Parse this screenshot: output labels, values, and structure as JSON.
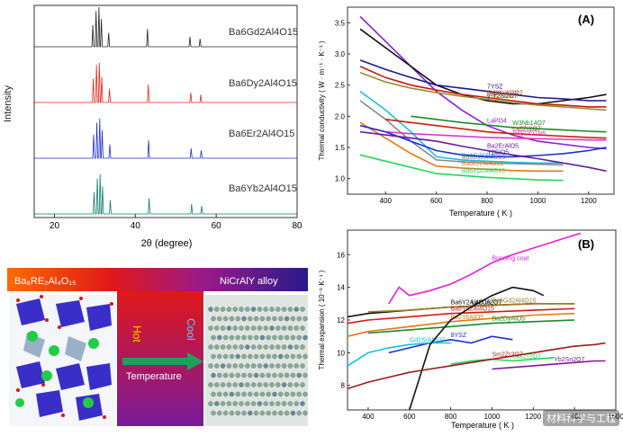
{
  "chart_data": [
    {
      "type": "line",
      "xlabel": "2θ (degree)",
      "ylabel": "Intensity",
      "xlim": [
        15,
        80
      ],
      "x_ticks": [
        "20",
        "40",
        "60",
        "80"
      ],
      "series": [
        {
          "name": "Ba6Gd2Al4O15",
          "color": "#222222",
          "peaks": [
            [
              29.5,
              0.55
            ],
            [
              30.3,
              0.9
            ],
            [
              31.0,
              1.0
            ],
            [
              31.6,
              0.7
            ],
            [
              33.4,
              0.35
            ],
            [
              43.0,
              0.45
            ],
            [
              53.5,
              0.25
            ],
            [
              56.0,
              0.2
            ]
          ]
        },
        {
          "name": "Ba6Dy2Al4O15",
          "color": "#e0281a",
          "peaks": [
            [
              29.6,
              0.6
            ],
            [
              30.4,
              0.95
            ],
            [
              31.1,
              1.0
            ],
            [
              31.7,
              0.65
            ],
            [
              33.6,
              0.35
            ],
            [
              43.2,
              0.45
            ],
            [
              53.7,
              0.25
            ],
            [
              56.2,
              0.2
            ]
          ]
        },
        {
          "name": "Ba6Er2Al4O15",
          "color": "#1f2ed0",
          "peaks": [
            [
              29.7,
              0.6
            ],
            [
              30.5,
              0.9
            ],
            [
              31.2,
              1.0
            ],
            [
              31.8,
              0.7
            ],
            [
              33.7,
              0.35
            ],
            [
              43.3,
              0.45
            ],
            [
              53.8,
              0.25
            ],
            [
              56.3,
              0.2
            ]
          ]
        },
        {
          "name": "Ba6Yb2Al4O15",
          "color": "#0e7c6b",
          "peaks": [
            [
              29.8,
              0.55
            ],
            [
              30.6,
              0.9
            ],
            [
              31.3,
              1.0
            ],
            [
              31.9,
              0.7
            ],
            [
              33.8,
              0.35
            ],
            [
              43.4,
              0.4
            ],
            [
              53.9,
              0.25
            ],
            [
              56.4,
              0.2
            ]
          ]
        }
      ]
    },
    {
      "type": "line",
      "panel_label": "(A)",
      "xlabel": "Temperature ( K )",
      "ylabel": "Thermal conductivity ( W · m⁻¹ · K⁻¹ )",
      "xlim": [
        250,
        1300
      ],
      "ylim": [
        0.75,
        3.75
      ],
      "x_ticks": [
        "400",
        "600",
        "800",
        "1000",
        "1200"
      ],
      "y_ticks": [
        "1.0",
        "1.5",
        "2.0",
        "2.5",
        "3.0",
        "3.5"
      ],
      "series": [
        {
          "name": "LaPO4",
          "color": "#8b1fd6",
          "x": [
            300,
            400,
            500,
            600,
            700,
            800,
            900,
            1000,
            1100,
            1200,
            1270
          ],
          "y": [
            3.6,
            3.2,
            2.8,
            2.4,
            2.1,
            1.85,
            1.7,
            1.6,
            1.55,
            1.5,
            1.48
          ]
        },
        {
          "name": "γ-Y2Si2O7",
          "color": "#111111",
          "x": [
            300,
            400,
            500,
            600,
            700,
            800,
            900,
            1000,
            1100,
            1200,
            1270
          ],
          "y": [
            3.4,
            3.1,
            2.8,
            2.5,
            2.35,
            2.25,
            2.2,
            2.2,
            2.25,
            2.3,
            2.35
          ]
        },
        {
          "name": "7YSZ",
          "color": "#1a1a8c",
          "x": [
            300,
            400,
            500,
            600,
            700,
            800,
            900,
            1000,
            1100,
            1200,
            1270
          ],
          "y": [
            2.9,
            2.75,
            2.62,
            2.5,
            2.45,
            2.4,
            2.35,
            2.3,
            2.28,
            2.25,
            2.25
          ]
        },
        {
          "name": "Gd2SrAl2O7",
          "color": "#c0181a",
          "x": [
            300,
            400,
            500,
            600,
            700,
            800,
            900,
            1000,
            1100,
            1200,
            1270
          ],
          "y": [
            2.8,
            2.62,
            2.5,
            2.42,
            2.35,
            2.3,
            2.25,
            2.2,
            2.18,
            2.15,
            2.15
          ]
        },
        {
          "name": "Yb2Sn2O7",
          "color": "#9c8a2a",
          "x": [
            300,
            400,
            500,
            600,
            700,
            800,
            900,
            1000,
            1100,
            1200,
            1270
          ],
          "y": [
            2.7,
            2.55,
            2.45,
            2.38,
            2.32,
            2.27,
            2.22,
            2.18,
            2.15,
            2.12,
            2.1
          ]
        },
        {
          "name": "Ba6Gd2Al4O15",
          "color": "#18c0d8",
          "x": [
            300,
            400,
            500,
            600,
            700,
            800,
            900,
            1000,
            1100
          ],
          "y": [
            2.4,
            2.1,
            1.75,
            1.35,
            1.3,
            1.28,
            1.26,
            1.25,
            1.25
          ]
        },
        {
          "name": "Ba6Dy2Al4O15",
          "color": "#888888",
          "x": [
            300,
            400,
            500,
            600,
            700,
            800,
            900,
            1000,
            1100
          ],
          "y": [
            2.25,
            1.95,
            1.6,
            1.3,
            1.27,
            1.25,
            1.24,
            1.23,
            1.22
          ]
        },
        {
          "name": "La2Zr2O7",
          "color": "#d01c10",
          "x": [
            400,
            500,
            600,
            700,
            800,
            900,
            1000,
            1100,
            1200,
            1270
          ],
          "y": [
            1.95,
            1.9,
            1.85,
            1.8,
            1.75,
            1.72,
            1.7,
            1.68,
            1.66,
            1.65
          ]
        },
        {
          "name": "W3Nb14O7",
          "color": "#1a8a2a",
          "x": [
            500,
            600,
            700,
            800,
            900,
            1000,
            1100,
            1200,
            1270
          ],
          "y": [
            2.0,
            1.95,
            1.9,
            1.86,
            1.82,
            1.8,
            1.78,
            1.76,
            1.75
          ]
        },
        {
          "name": "Y4Si2O7N6",
          "color": "#d838c8",
          "x": [
            400,
            500,
            600,
            700,
            800,
            900,
            1000,
            1100,
            1200,
            1270
          ],
          "y": [
            1.75,
            1.72,
            1.7,
            1.68,
            1.66,
            1.65,
            1.64,
            1.63,
            1.62,
            1.62
          ]
        },
        {
          "name": "Ba6Er2Al4O15",
          "color": "#e07a18",
          "x": [
            300,
            400,
            500,
            600,
            700,
            800,
            900,
            1000,
            1100
          ],
          "y": [
            1.9,
            1.65,
            1.4,
            1.2,
            1.17,
            1.15,
            1.13,
            1.12,
            1.12
          ]
        },
        {
          "name": "Y2SiO5",
          "color": "#1f2ed0",
          "x": [
            300,
            400,
            500,
            600,
            700,
            800,
            900,
            1000,
            1100,
            1200,
            1270
          ],
          "y": [
            1.85,
            1.75,
            1.6,
            1.45,
            1.38,
            1.35,
            1.35,
            1.37,
            1.4,
            1.45,
            1.5
          ]
        },
        {
          "name": "Ba2ErAlO5",
          "color": "#6a1a9a",
          "x": [
            300,
            400,
            500,
            600,
            700,
            800,
            900,
            1000,
            1100,
            1200,
            1270
          ],
          "y": [
            1.75,
            1.7,
            1.65,
            1.6,
            1.52,
            1.45,
            1.38,
            1.32,
            1.25,
            1.18,
            1.12
          ]
        },
        {
          "name": "Ba6Yb2Al4O15",
          "color": "#20d858",
          "x": [
            300,
            400,
            500,
            600,
            700,
            800,
            900,
            1000,
            1100
          ],
          "y": [
            1.38,
            1.28,
            1.18,
            1.08,
            1.05,
            1.02,
            1.0,
            0.98,
            0.97
          ]
        }
      ]
    },
    {
      "type": "line",
      "panel_label": "(B)",
      "xlabel": "Temperature ( K )",
      "ylabel": "Thermal expansion ( 10⁻⁶ K⁻¹ )",
      "xlim": [
        300,
        1600
      ],
      "ylim": [
        6.5,
        17.5
      ],
      "x_ticks": [
        "400",
        "600",
        "800",
        "1000",
        "1200",
        "1400",
        "1600"
      ],
      "y_ticks": [
        "8",
        "10",
        "12",
        "14",
        "16"
      ],
      "series": [
        {
          "name": "Bonding coat",
          "color": "#e020d8",
          "x": [
            500,
            550,
            600,
            700,
            800,
            900,
            1000,
            1100,
            1200,
            1300,
            1400,
            1430
          ],
          "y": [
            13.0,
            14.0,
            13.5,
            13.8,
            14.2,
            14.8,
            15.5,
            16.0,
            16.4,
            16.8,
            17.2,
            17.3
          ]
        },
        {
          "name": "Ba6Y2Al4O15",
          "color": "#111111",
          "x": [
            300,
            400,
            600,
            800,
            1000,
            1200,
            1400
          ],
          "y": [
            12.2,
            12.4,
            12.6,
            12.8,
            12.9,
            13.0,
            13.0
          ]
        },
        {
          "name": "Ba6Gd2Al4O15",
          "color": "#9c7c2a",
          "x": [
            400,
            600,
            800,
            1000,
            1200,
            1400
          ],
          "y": [
            12.5,
            12.6,
            12.8,
            12.9,
            13.0,
            13.0
          ]
        },
        {
          "name": "Ba6Yb2Al4O15",
          "color": "#d01c10",
          "x": [
            300,
            400,
            600,
            800,
            1000,
            1200,
            1400
          ],
          "y": [
            11.8,
            12.0,
            12.2,
            12.4,
            12.5,
            12.6,
            12.7
          ]
        },
        {
          "name": "Ba2YbAlO5",
          "color": "#e07a18",
          "x": [
            300,
            400,
            600,
            800,
            1000,
            1200,
            1400
          ],
          "y": [
            11.0,
            11.3,
            11.6,
            11.9,
            12.1,
            12.3,
            12.4
          ]
        },
        {
          "name": "Ba2DyAlO5",
          "color": "#1a8a2a",
          "x": [
            400,
            600,
            800,
            1000,
            1200,
            1400
          ],
          "y": [
            11.2,
            11.4,
            11.6,
            11.8,
            11.9,
            12.0
          ]
        },
        {
          "name": "8YSZ",
          "color": "#1f2ed0",
          "x": [
            500,
            600,
            700,
            800,
            900,
            1000,
            1100
          ],
          "y": [
            10.0,
            10.3,
            10.6,
            10.8,
            10.6,
            11.0,
            10.8
          ]
        },
        {
          "name": "Gd2SrAl2O7",
          "color": "#18c0d8",
          "x": [
            300,
            400,
            500,
            600,
            700,
            800
          ],
          "y": [
            9.2,
            10.0,
            10.3,
            10.5,
            10.6,
            10.6
          ]
        },
        {
          "name": "La2Zr2O7",
          "color": "#20d858",
          "x": [
            800,
            900,
            1000,
            1100,
            1200,
            1300
          ],
          "y": [
            9.3,
            9.5,
            9.6,
            9.5,
            9.6,
            9.7
          ]
        },
        {
          "name": "La2Ce2O7",
          "color": "#111111",
          "x": [
            600,
            650,
            700,
            800,
            900,
            1000,
            1100,
            1200,
            1250
          ],
          "y": [
            6.5,
            8.5,
            10.5,
            12.0,
            12.8,
            13.5,
            14.0,
            13.8,
            13.5
          ]
        },
        {
          "name": "Sm2Zr2O7",
          "color": "#9c1a1a",
          "x": [
            300,
            400,
            500,
            600,
            700,
            800,
            900,
            1000,
            1100,
            1200,
            1300,
            1400,
            1500,
            1550
          ],
          "y": [
            7.8,
            8.2,
            8.5,
            8.8,
            9.0,
            9.2,
            9.4,
            9.6,
            9.8,
            10.0,
            10.2,
            10.4,
            10.5,
            10.6
          ]
        },
        {
          "name": "Yb2Sn2O7",
          "color": "#7a1a9a",
          "x": [
            1000,
            1100,
            1200,
            1300,
            1400,
            1500,
            1550
          ],
          "y": [
            9.0,
            9.1,
            9.2,
            9.3,
            9.4,
            9.5,
            9.5
          ]
        }
      ]
    }
  ],
  "xrd_panel": {
    "ylabel": "Intensity",
    "xlabel": "2θ (degree)",
    "labels": [
      "Ba6Gd2Al4O15",
      "Ba6Dy2Al4O15",
      "Ba6Er2Al4O15",
      "Ba6Yb2Al4O15"
    ]
  },
  "diagram": {
    "left_title": "Ba₆RE₂Al₄O₁₅",
    "right_title": "NiCrAlY alloy",
    "hot": "Hot",
    "cool": "Cool",
    "temperature": "Temperature"
  },
  "watermark": "材料科学与工程",
  "colors": {
    "red": "#d01c10",
    "blue": "#2a1a8a"
  }
}
